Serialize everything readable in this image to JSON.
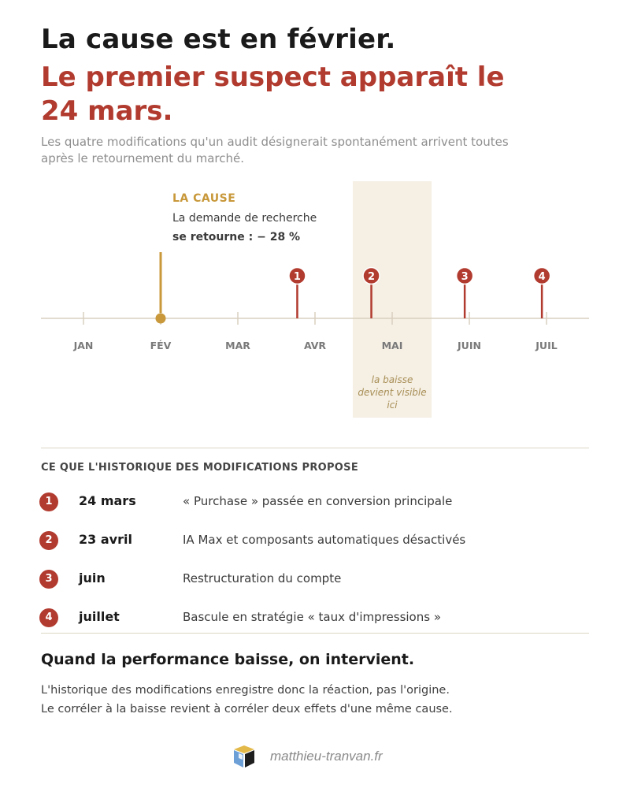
{
  "header": {
    "title": "La cause est en février.",
    "highlight": "Le premier suspect apparaît le 24 mars.",
    "subtitle": "Les quatre modifications qu'un audit désignerait spontanément arrivent toutes après le retournement du marché."
  },
  "timeline": {
    "months": [
      "JAN",
      "FÉV",
      "MAR",
      "AVR",
      "MAI",
      "JUIN",
      "JUIL"
    ],
    "cause": {
      "tag": "LA CAUSE",
      "line1": "La demande de recherche",
      "line2": "se retourne : − 28 %"
    },
    "markers": [
      {
        "num": "1",
        "month_position": 3.77
      },
      {
        "num": "2",
        "month_position": 4.73
      },
      {
        "num": "3",
        "month_position": 5.94
      },
      {
        "num": "4",
        "month_position": 6.94
      }
    ],
    "cause_month_position": 2.0,
    "band_note": "la baisse devient visible ici"
  },
  "changes": {
    "section_title": "CE QUE L'HISTORIQUE DES MODIFICATIONS PROPOSE",
    "items": [
      {
        "num": "1",
        "date": "24 mars",
        "desc": "« Purchase » passée en conversion principale"
      },
      {
        "num": "2",
        "date": "23 avril",
        "desc": "IA Max et composants automatiques désactivés"
      },
      {
        "num": "3",
        "date": "juin",
        "desc": "Restructuration du compte"
      },
      {
        "num": "4",
        "date": "juillet",
        "desc": "Bascule en stratégie « taux d'impressions »"
      }
    ]
  },
  "conclusion": {
    "title": "Quand la performance baisse, on intervient.",
    "line1": "L'historique des modifications enregistre donc la réaction, pas l'origine.",
    "line2": "Le corréler à la baisse revient à corréler deux effets d'une même cause."
  },
  "footer": {
    "site": "matthieu-tranvan.fr",
    "logo_icon": "cube-logo-icon"
  },
  "colors": {
    "accent_red": "#b23b2f",
    "cause_gold": "#c8983a",
    "band": "#f5efe4"
  }
}
